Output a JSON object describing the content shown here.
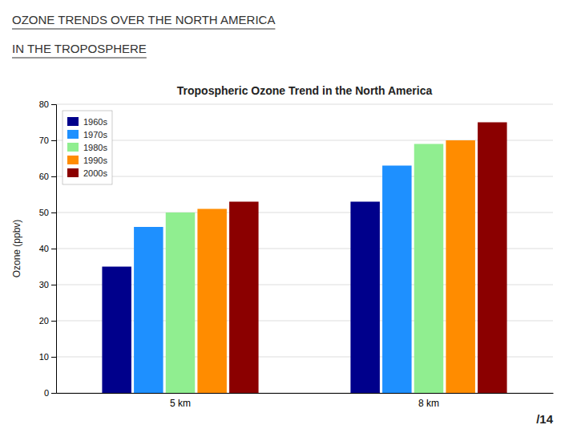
{
  "chart_data": {
    "type": "bar",
    "title": "Tropospheric Ozone Trend in the North America",
    "annotations": [
      "OZONE TRENDS OVER THE NORTH AMERICA",
      "IN THE TROPOSPHERE",
      "/14"
    ],
    "y_label": "Ozone (ppbv)",
    "categories": [
      "5 km",
      "8 km"
    ],
    "series": [
      {
        "name": "1960s",
        "color": "#00008B",
        "values": [
          35,
          53
        ]
      },
      {
        "name": "1970s",
        "color": "#1E90FF",
        "values": [
          46,
          63
        ]
      },
      {
        "name": "1980s",
        "color": "#90EE90",
        "values": [
          50,
          69
        ]
      },
      {
        "name": "1990s",
        "color": "#FF8C00",
        "values": [
          51,
          70
        ]
      },
      {
        "name": "2000s",
        "color": "#8B0000",
        "values": [
          53,
          75
        ]
      }
    ],
    "ylim": [
      0,
      80
    ],
    "yticks": [
      0,
      10,
      20,
      30,
      40,
      50,
      60,
      70,
      80
    ],
    "grid": true,
    "legend": "upper left"
  }
}
